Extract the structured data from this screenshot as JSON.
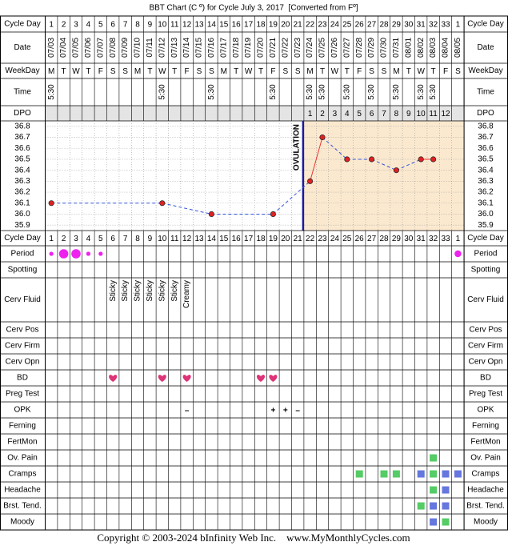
{
  "title": "BBT Chart (C º) for Cycle July 3, 2017  [Converted from Fº]",
  "header_rows": [
    {
      "label": "Cycle Day",
      "values": [
        1,
        2,
        3,
        4,
        5,
        6,
        7,
        8,
        9,
        10,
        11,
        12,
        13,
        14,
        15,
        16,
        17,
        18,
        19,
        20,
        21,
        22,
        23,
        24,
        25,
        26,
        27,
        28,
        29,
        30,
        31,
        32,
        33,
        1
      ]
    },
    {
      "label": "Date",
      "values": [
        "07/03",
        "07/04",
        "07/05",
        "07/06",
        "07/07",
        "07/08",
        "07/09",
        "07/10",
        "07/11",
        "07/12",
        "07/13",
        "07/14",
        "07/15",
        "07/16",
        "07/17",
        "07/18",
        "07/19",
        "07/20",
        "07/21",
        "07/22",
        "07/23",
        "07/24",
        "07/25",
        "07/26",
        "07/27",
        "07/28",
        "07/29",
        "07/30",
        "07/31",
        "08/01",
        "08/02",
        "08/03",
        "08/04",
        "08/05"
      ]
    },
    {
      "label": "WeekDay",
      "values": [
        "M",
        "T",
        "W",
        "T",
        "F",
        "S",
        "S",
        "M",
        "T",
        "W",
        "T",
        "F",
        "S",
        "S",
        "M",
        "T",
        "W",
        "T",
        "F",
        "S",
        "S",
        "M",
        "T",
        "W",
        "T",
        "F",
        "S",
        "S",
        "M",
        "T",
        "W",
        "T",
        "F",
        "S"
      ]
    },
    {
      "label": "Time",
      "values": [
        "5:30",
        null,
        null,
        null,
        null,
        null,
        null,
        null,
        null,
        "5:30",
        null,
        null,
        null,
        "5:30",
        null,
        null,
        null,
        null,
        "5:30",
        null,
        null,
        "5:30",
        "5:30",
        null,
        "5:30",
        null,
        "5:30",
        null,
        "5:30",
        null,
        "5:30",
        "5:30",
        null,
        null
      ]
    },
    {
      "label": "DPO",
      "values": [
        null,
        null,
        null,
        null,
        null,
        null,
        null,
        null,
        null,
        null,
        null,
        null,
        null,
        null,
        null,
        null,
        null,
        null,
        null,
        null,
        null,
        1,
        2,
        3,
        4,
        5,
        6,
        7,
        8,
        9,
        10,
        11,
        12,
        null
      ]
    }
  ],
  "temperature": {
    "ylim": [
      35.85,
      36.85
    ],
    "yticks": [
      36.8,
      36.7,
      36.6,
      36.5,
      36.4,
      36.3,
      36.2,
      36.1,
      {
        "value": 36,
        "label": "36.0"
      },
      35.9
    ],
    "values": [
      36.1,
      null,
      null,
      null,
      null,
      null,
      null,
      null,
      null,
      36.1,
      null,
      null,
      null,
      36.0,
      null,
      null,
      null,
      null,
      36.0,
      null,
      null,
      36.3,
      36.7,
      null,
      36.5,
      null,
      36.5,
      null,
      36.4,
      null,
      36.5,
      36.5,
      null,
      null
    ],
    "ovulation_label": "OVULATION",
    "point_color": "#dd2222",
    "solid_color": "#ee3333",
    "dashed_color": "#3355dd",
    "shade_color": "#fbe9cf"
  },
  "rows": [
    {
      "label": "Period",
      "sizes": [
        1,
        3,
        3,
        1,
        1,
        null,
        null,
        null,
        null,
        null,
        null,
        null,
        null,
        null,
        null,
        null,
        null,
        null,
        null,
        null,
        null,
        null,
        null,
        null,
        null,
        null,
        null,
        null,
        null,
        null,
        null,
        null,
        null,
        2
      ],
      "color": "#ee22ee"
    },
    {
      "label": "Spotting"
    },
    {
      "label": "Cerv Fluid",
      "values": [
        null,
        null,
        null,
        null,
        null,
        "Sticky",
        "Sticky",
        "Sticky",
        "Sticky",
        "Sticky",
        "Sticky",
        "Creamy",
        null,
        null,
        null,
        null,
        null,
        null,
        null,
        null,
        null,
        null,
        null,
        null,
        null,
        null,
        null,
        null,
        null,
        null,
        null,
        null,
        null,
        null
      ]
    },
    {
      "label": "Cerv Pos"
    },
    {
      "label": "Cerv Firm"
    },
    {
      "label": "Cerv Opn"
    },
    {
      "label": "BD",
      "values": [
        null,
        null,
        null,
        null,
        null,
        true,
        null,
        null,
        null,
        true,
        null,
        true,
        null,
        null,
        null,
        null,
        null,
        true,
        true,
        null,
        null,
        null,
        null,
        null,
        null,
        null,
        null,
        null,
        null,
        null,
        null,
        null,
        null,
        null
      ],
      "color": "#dd3377"
    },
    {
      "label": "Preg Test"
    },
    {
      "label": "OPK",
      "values": [
        null,
        null,
        null,
        null,
        null,
        null,
        null,
        null,
        null,
        null,
        null,
        "–",
        null,
        null,
        null,
        null,
        null,
        null,
        "+",
        "+",
        "–",
        null,
        null,
        null,
        null,
        null,
        null,
        null,
        null,
        null,
        null,
        null,
        null,
        null
      ],
      "color": "#8844cc"
    },
    {
      "label": "Ferning"
    },
    {
      "label": "FertMon"
    },
    {
      "label": "Ov. Pain",
      "colors": [
        null,
        null,
        null,
        null,
        null,
        null,
        null,
        null,
        null,
        null,
        null,
        null,
        null,
        null,
        null,
        null,
        null,
        null,
        null,
        null,
        null,
        null,
        null,
        null,
        null,
        null,
        null,
        null,
        null,
        null,
        null,
        "#55cc66",
        null,
        null
      ]
    },
    {
      "label": "Cramps",
      "colors": [
        null,
        null,
        null,
        null,
        null,
        null,
        null,
        null,
        null,
        null,
        null,
        null,
        null,
        null,
        null,
        null,
        null,
        null,
        null,
        null,
        null,
        null,
        null,
        null,
        null,
        "#55cc66",
        null,
        "#55cc66",
        "#55cc66",
        null,
        "#6677dd",
        "#55cc66",
        "#6677dd",
        "#6677dd"
      ]
    },
    {
      "label": "Headache",
      "colors": [
        null,
        null,
        null,
        null,
        null,
        null,
        null,
        null,
        null,
        null,
        null,
        null,
        null,
        null,
        null,
        null,
        null,
        null,
        null,
        null,
        null,
        null,
        null,
        null,
        null,
        null,
        null,
        null,
        null,
        null,
        null,
        "#55cc66",
        "#6677dd",
        null
      ]
    },
    {
      "label": "Brst. Tend.",
      "colors": [
        null,
        null,
        null,
        null,
        null,
        null,
        null,
        null,
        null,
        null,
        null,
        null,
        null,
        null,
        null,
        null,
        null,
        null,
        null,
        null,
        null,
        null,
        null,
        null,
        null,
        null,
        null,
        null,
        null,
        null,
        "#55cc66",
        "#6677dd",
        "#6677dd",
        null
      ]
    },
    {
      "label": "Moody",
      "colors": [
        null,
        null,
        null,
        null,
        null,
        null,
        null,
        null,
        null,
        null,
        null,
        null,
        null,
        null,
        null,
        null,
        null,
        null,
        null,
        null,
        null,
        null,
        null,
        null,
        null,
        null,
        null,
        null,
        null,
        null,
        null,
        "#6677dd",
        "#55cc66",
        null
      ]
    }
  ],
  "footer": "Copyright © 2003-2024 bInfinity Web Inc.    www.MyMonthlyCycles.com"
}
